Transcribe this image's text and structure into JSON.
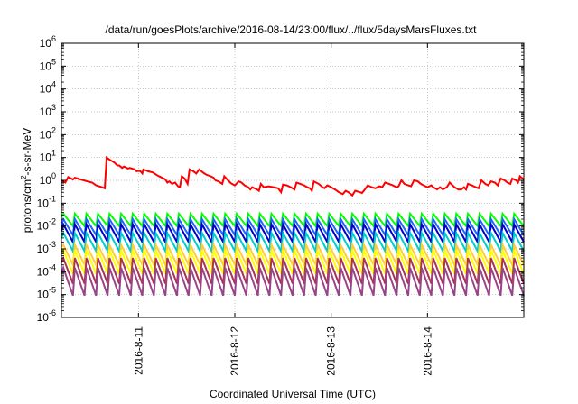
{
  "chart_data": {
    "type": "line",
    "title": "/data/run/goesPlots/archive/2016-08-14/23:00/flux/../flux/5daysMarsFluxes.txt",
    "xlabel": "Coordinated Universal Time (UTC)",
    "ylabel_parts": [
      "protons/cm",
      "2",
      "-s-sr-MeV"
    ],
    "y_scale": "log",
    "ylim": [
      1e-06,
      1000000.0
    ],
    "xlim": [
      0,
      4.8
    ],
    "y_ticks": [
      {
        "value": 1e-06,
        "base": "10",
        "exp": "-6"
      },
      {
        "value": 1e-05,
        "base": "10",
        "exp": "-5"
      },
      {
        "value": 0.0001,
        "base": "10",
        "exp": "-4"
      },
      {
        "value": 0.001,
        "base": "10",
        "exp": "-3"
      },
      {
        "value": 0.01,
        "base": "10",
        "exp": "-2"
      },
      {
        "value": 0.1,
        "base": "10",
        "exp": "-1"
      },
      {
        "value": 1,
        "base": "10",
        "exp": "0"
      },
      {
        "value": 10,
        "base": "10",
        "exp": "1"
      },
      {
        "value": 100,
        "base": "10",
        "exp": "2"
      },
      {
        "value": 1000,
        "base": "10",
        "exp": "3"
      },
      {
        "value": 10000,
        "base": "10",
        "exp": "4"
      },
      {
        "value": 100000,
        "base": "10",
        "exp": "5"
      },
      {
        "value": 1000000,
        "base": "10",
        "exp": "6"
      }
    ],
    "x_ticks": [
      {
        "value": 0.8,
        "label": "2016-8-11"
      },
      {
        "value": 1.8,
        "label": "2016-8-12"
      },
      {
        "value": 2.8,
        "label": "2016-8-13"
      },
      {
        "value": 3.8,
        "label": "2016-8-14"
      }
    ],
    "grid": true,
    "series": [
      {
        "color": "#ff0000",
        "points": [
          [
            0,
            1.0
          ],
          [
            0.04,
            0.8
          ],
          [
            0.07,
            1.4
          ],
          [
            0.12,
            1.1
          ],
          [
            0.14,
            1.3
          ],
          [
            0.2,
            1.1
          ],
          [
            0.27,
            0.9
          ],
          [
            0.32,
            0.8
          ],
          [
            0.36,
            0.6
          ],
          [
            0.42,
            0.5
          ],
          [
            0.45,
            0.45
          ],
          [
            0.47,
            10
          ],
          [
            0.5,
            8
          ],
          [
            0.55,
            6
          ],
          [
            0.58,
            4.5
          ],
          [
            0.6,
            4.5
          ],
          [
            0.63,
            3.5
          ],
          [
            0.65,
            4
          ],
          [
            0.69,
            3.3
          ],
          [
            0.71,
            3.5
          ],
          [
            0.76,
            3
          ],
          [
            0.78,
            2.5
          ],
          [
            0.8,
            2.6
          ],
          [
            0.82,
            2.5
          ],
          [
            0.84,
            2
          ],
          [
            0.85,
            3
          ],
          [
            0.9,
            2.5
          ],
          [
            0.95,
            2.2
          ],
          [
            1.0,
            1.6
          ],
          [
            1.03,
            1.4
          ],
          [
            1.08,
            1.1
          ],
          [
            1.1,
            0.8
          ],
          [
            1.12,
            0.9
          ],
          [
            1.15,
            0.7
          ],
          [
            1.18,
            0.8
          ],
          [
            1.21,
            0.55
          ],
          [
            1.23,
            0.5
          ],
          [
            1.25,
            1.5
          ],
          [
            1.28,
            1.2
          ],
          [
            1.31,
            0.7
          ],
          [
            1.33,
            3.0
          ],
          [
            1.37,
            2.5
          ],
          [
            1.4,
            2.0
          ],
          [
            1.43,
            3.0
          ],
          [
            1.47,
            2.2
          ],
          [
            1.5,
            1.8
          ],
          [
            1.55,
            1.5
          ],
          [
            1.58,
            1.3
          ],
          [
            1.6,
            1.0
          ],
          [
            1.63,
            0.9
          ],
          [
            1.67,
            0.7
          ],
          [
            1.69,
            1.5
          ],
          [
            1.73,
            1.0
          ],
          [
            1.76,
            0.75
          ],
          [
            1.8,
            0.6
          ],
          [
            1.84,
            0.9
          ],
          [
            1.87,
            0.8
          ],
          [
            1.9,
            0.6
          ],
          [
            1.94,
            0.5
          ],
          [
            1.96,
            0.4
          ],
          [
            1.98,
            0.5
          ],
          [
            2.03,
            0.4
          ],
          [
            2.05,
            0.35
          ],
          [
            2.07,
            0.7
          ],
          [
            2.1,
            0.5
          ],
          [
            2.15,
            0.55
          ],
          [
            2.2,
            0.5
          ],
          [
            2.25,
            0.45
          ],
          [
            2.28,
            0.3
          ],
          [
            2.3,
            0.65
          ],
          [
            2.34,
            0.6
          ],
          [
            2.38,
            0.5
          ],
          [
            2.42,
            0.4
          ],
          [
            2.44,
            0.8
          ],
          [
            2.48,
            0.7
          ],
          [
            2.52,
            0.6
          ],
          [
            2.55,
            0.5
          ],
          [
            2.58,
            0.45
          ],
          [
            2.6,
            0.35
          ],
          [
            2.62,
            0.9
          ],
          [
            2.67,
            0.7
          ],
          [
            2.71,
            0.5
          ],
          [
            2.73,
            0.45
          ],
          [
            2.76,
            0.6
          ],
          [
            2.8,
            0.5
          ],
          [
            2.84,
            0.4
          ],
          [
            2.88,
            0.3
          ],
          [
            2.92,
            0.25
          ],
          [
            2.95,
            0.35
          ],
          [
            2.98,
            0.3
          ],
          [
            3.02,
            0.22
          ],
          [
            3.05,
            0.35
          ],
          [
            3.1,
            0.3
          ],
          [
            3.12,
            0.28
          ],
          [
            3.15,
            0.4
          ],
          [
            3.18,
            0.6
          ],
          [
            3.22,
            0.5
          ],
          [
            3.26,
            0.45
          ],
          [
            3.3,
            0.55
          ],
          [
            3.33,
            0.5
          ],
          [
            3.36,
            0.8
          ],
          [
            3.4,
            0.7
          ],
          [
            3.44,
            0.6
          ],
          [
            3.48,
            0.5
          ],
          [
            3.5,
            0.55
          ],
          [
            3.53,
            1.0
          ],
          [
            3.56,
            0.7
          ],
          [
            3.6,
            0.6
          ],
          [
            3.63,
            0.55
          ],
          [
            3.66,
            1.0
          ],
          [
            3.7,
            0.9
          ],
          [
            3.73,
            0.7
          ],
          [
            3.76,
            0.6
          ],
          [
            3.8,
            0.5
          ],
          [
            3.84,
            0.6
          ],
          [
            3.86,
            0.5
          ],
          [
            3.9,
            0.4
          ],
          [
            3.93,
            0.5
          ],
          [
            3.96,
            0.4
          ],
          [
            4.0,
            0.5
          ],
          [
            4.03,
            0.8
          ],
          [
            4.08,
            0.5
          ],
          [
            4.12,
            0.4
          ],
          [
            4.15,
            0.4
          ],
          [
            4.18,
            0.5
          ],
          [
            4.2,
            0.4
          ],
          [
            4.22,
            0.7
          ],
          [
            4.26,
            0.6
          ],
          [
            4.3,
            0.5
          ],
          [
            4.33,
            0.45
          ],
          [
            4.36,
            1.0
          ],
          [
            4.4,
            0.7
          ],
          [
            4.43,
            0.6
          ],
          [
            4.46,
            0.9
          ],
          [
            4.5,
            0.8
          ],
          [
            4.53,
            0.6
          ],
          [
            4.56,
            1.2
          ],
          [
            4.6,
            1.0
          ],
          [
            4.63,
            0.8
          ],
          [
            4.66,
            0.7
          ],
          [
            4.68,
            1.2
          ],
          [
            4.72,
            1.0
          ],
          [
            4.74,
            0.8
          ],
          [
            4.76,
            1.5
          ],
          [
            4.8,
            1.1
          ]
        ]
      },
      {
        "color": "#00ff00",
        "shape": "sawtooth",
        "start": 0.025,
        "peak": 0.035,
        "trough": 0.01,
        "period": 0.12
      },
      {
        "color": "#1a66ff",
        "shape": "sawtooth",
        "start": 0.012,
        "peak": 0.02,
        "trough": 0.004,
        "period": 0.12
      },
      {
        "color": "#0000cc",
        "shape": "sawtooth",
        "start": 0.006,
        "peak": 0.012,
        "trough": 0.002,
        "period": 0.12
      },
      {
        "color": "#00cccc",
        "shape": "sawtooth",
        "start": 0.003,
        "peak": 0.005,
        "trough": 0.0008,
        "period": 0.12
      },
      {
        "color": "#ffcc33",
        "shape": "sawtooth",
        "start": 0.0012,
        "peak": 0.0015,
        "trough": 0.0002,
        "period": 0.12
      },
      {
        "color": "#ffff00",
        "shape": "sawtooth",
        "start": 0.0007,
        "peak": 0.0009,
        "trough": 8e-05,
        "period": 0.12
      },
      {
        "color": "#aa3355",
        "shape": "sawtooth",
        "start": 0.00025,
        "peak": 0.0004,
        "trough": 3e-05,
        "period": 0.12
      },
      {
        "color": "#994488",
        "shape": "sawtooth",
        "start": 8e-05,
        "peak": 0.00015,
        "trough": 9e-06,
        "period": 0.12
      }
    ]
  }
}
